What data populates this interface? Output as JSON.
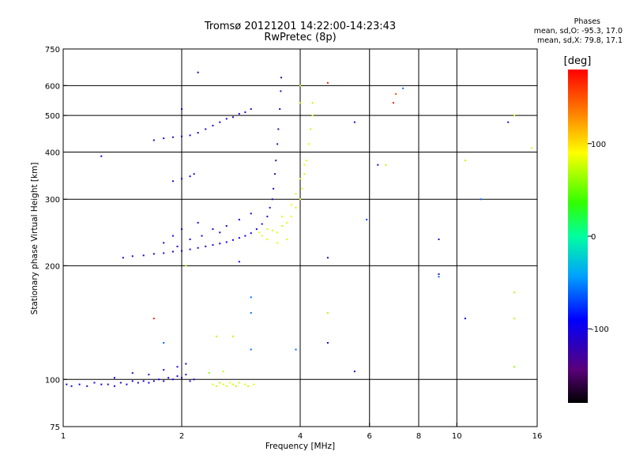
{
  "header": {
    "title_line1": "Tromsø 20121201 14:22:00-14:23:43",
    "title_line2": "RwPretec (8p)"
  },
  "phases": {
    "title": "Phases",
    "line_o": "mean, sd,O: -95.3, 17.0",
    "line_x": "mean, sd,X:  79.8, 17.1"
  },
  "colorbar": {
    "label": "[deg]",
    "ticks": [
      "100",
      "0",
      "-100"
    ],
    "tick_values": [
      100,
      0,
      -100
    ],
    "range": [
      -180,
      180
    ]
  },
  "chart_data": {
    "type": "scatter",
    "xlabel": "Frequency [MHz]",
    "ylabel": "Stationary phase Virtual Height [km]",
    "x_scale": "log",
    "y_scale": "log",
    "xlim": [
      1,
      16
    ],
    "ylim": [
      75,
      750
    ],
    "xticks": [
      1,
      2,
      4,
      6,
      8,
      10,
      16
    ],
    "xtick_labels": [
      "1",
      "2",
      "4",
      "6",
      "8",
      "10",
      "16"
    ],
    "yticks": [
      75,
      100,
      200,
      300,
      400,
      500,
      600,
      750
    ],
    "ytick_labels": [
      "75",
      "100",
      "200",
      "300",
      "400",
      "500",
      "600",
      "750"
    ],
    "grid_x": [
      2,
      4,
      6,
      8,
      10
    ],
    "grid_y": [
      100,
      200,
      300,
      400,
      500,
      600
    ],
    "color_meaning": "phase [deg]",
    "traces": [
      {
        "name_hint": "E layer O",
        "f_range": [
          1.0,
          2.2
        ],
        "h_base": 96,
        "phase": -105
      },
      {
        "name_hint": "E layer X",
        "f_range": [
          2.3,
          3.1
        ],
        "h_base": 97,
        "phase": 75
      },
      {
        "name_hint": "F layer O",
        "f_range": [
          1.4,
          3.55
        ],
        "h_base": 210,
        "phase": -100
      },
      {
        "name_hint": "F layer X",
        "f_range": [
          3.1,
          4.4
        ],
        "h_base": 240,
        "phase": 80
      },
      {
        "name_hint": "F layer O upper",
        "f_range": [
          1.7,
          3.0
        ],
        "h_base": 430,
        "phase": -110
      }
    ],
    "points": [
      [
        1.02,
        97,
        -100
      ],
      [
        1.05,
        96,
        -100
      ],
      [
        1.1,
        97,
        -95
      ],
      [
        1.15,
        96,
        -110
      ],
      [
        1.2,
        98,
        -100
      ],
      [
        1.25,
        97,
        -105
      ],
      [
        1.3,
        97,
        -100
      ],
      [
        1.35,
        96,
        -95
      ],
      [
        1.4,
        98,
        -110
      ],
      [
        1.45,
        97,
        -100
      ],
      [
        1.5,
        99,
        -100
      ],
      [
        1.55,
        98,
        -105
      ],
      [
        1.6,
        99,
        -100
      ],
      [
        1.65,
        98,
        -95
      ],
      [
        1.7,
        99,
        -110
      ],
      [
        1.75,
        100,
        -100
      ],
      [
        1.8,
        99,
        -100
      ],
      [
        1.85,
        101,
        -105
      ],
      [
        1.9,
        100,
        -100
      ],
      [
        1.95,
        102,
        -95
      ],
      [
        2.0,
        101,
        -110
      ],
      [
        2.05,
        103,
        -100
      ],
      [
        2.1,
        99,
        -100
      ],
      [
        2.15,
        100,
        -105
      ],
      [
        1.35,
        101,
        -100
      ],
      [
        1.5,
        104,
        -100
      ],
      [
        1.65,
        103,
        -105
      ],
      [
        1.8,
        106,
        -95
      ],
      [
        1.95,
        108,
        -100
      ],
      [
        2.05,
        110,
        -100
      ],
      [
        2.4,
        97,
        80
      ],
      [
        2.45,
        96,
        75
      ],
      [
        2.5,
        98,
        70
      ],
      [
        2.55,
        97,
        80
      ],
      [
        2.6,
        96,
        75
      ],
      [
        2.65,
        98,
        85
      ],
      [
        2.7,
        97,
        80
      ],
      [
        2.75,
        96,
        70
      ],
      [
        2.8,
        98,
        75
      ],
      [
        2.9,
        97,
        80
      ],
      [
        2.95,
        96,
        75
      ],
      [
        3.05,
        97,
        80
      ],
      [
        2.55,
        105,
        70
      ],
      [
        2.35,
        104,
        60
      ],
      [
        1.42,
        210,
        -100
      ],
      [
        1.5,
        212,
        -105
      ],
      [
        1.6,
        213,
        -100
      ],
      [
        1.7,
        215,
        -95
      ],
      [
        1.8,
        216,
        -100
      ],
      [
        1.9,
        218,
        -105
      ],
      [
        2.0,
        219,
        -100
      ],
      [
        2.1,
        221,
        -95
      ],
      [
        2.2,
        223,
        -100
      ],
      [
        2.3,
        225,
        -105
      ],
      [
        2.4,
        227,
        -100
      ],
      [
        2.5,
        229,
        -95
      ],
      [
        2.6,
        231,
        -100
      ],
      [
        2.7,
        234,
        -105
      ],
      [
        2.8,
        237,
        -100
      ],
      [
        2.9,
        240,
        -95
      ],
      [
        3.0,
        244,
        -100
      ],
      [
        3.1,
        250,
        -105
      ],
      [
        3.2,
        258,
        -110
      ],
      [
        3.3,
        270,
        -115
      ],
      [
        3.35,
        285,
        -115
      ],
      [
        3.4,
        300,
        -120
      ],
      [
        3.42,
        320,
        -120
      ],
      [
        3.45,
        350,
        -120
      ],
      [
        3.47,
        380,
        -125
      ],
      [
        3.5,
        420,
        -125
      ],
      [
        3.52,
        460,
        -125
      ],
      [
        3.55,
        520,
        -125
      ],
      [
        3.57,
        580,
        -125
      ],
      [
        3.58,
        630,
        -125
      ],
      [
        1.8,
        230,
        -100
      ],
      [
        1.9,
        240,
        -100
      ],
      [
        2.0,
        250,
        -95
      ],
      [
        2.1,
        235,
        -100
      ],
      [
        2.2,
        260,
        -105
      ],
      [
        2.4,
        250,
        -100
      ],
      [
        2.6,
        255,
        -105
      ],
      [
        2.8,
        265,
        -100
      ],
      [
        3.0,
        275,
        -110
      ],
      [
        2.25,
        240,
        -100
      ],
      [
        2.5,
        245,
        -100
      ],
      [
        1.95,
        225,
        -100
      ],
      [
        3.15,
        245,
        80
      ],
      [
        3.2,
        240,
        85
      ],
      [
        3.3,
        250,
        75
      ],
      [
        3.4,
        248,
        80
      ],
      [
        3.5,
        245,
        85
      ],
      [
        3.6,
        255,
        75
      ],
      [
        3.7,
        260,
        80
      ],
      [
        3.8,
        270,
        85
      ],
      [
        3.9,
        285,
        75
      ],
      [
        4.0,
        300,
        80
      ],
      [
        4.05,
        320,
        85
      ],
      [
        4.1,
        350,
        75
      ],
      [
        4.15,
        380,
        80
      ],
      [
        4.2,
        420,
        80
      ],
      [
        4.25,
        460,
        75
      ],
      [
        4.3,
        500,
        80
      ],
      [
        4.3,
        540,
        70
      ],
      [
        3.6,
        270,
        80
      ],
      [
        3.8,
        290,
        85
      ],
      [
        3.9,
        310,
        75
      ],
      [
        3.7,
        235,
        80
      ],
      [
        3.5,
        230,
        85
      ],
      [
        3.3,
        235,
        80
      ],
      [
        4.0,
        340,
        80
      ],
      [
        4.1,
        370,
        85
      ],
      [
        1.7,
        430,
        -110
      ],
      [
        1.8,
        435,
        -105
      ],
      [
        1.9,
        438,
        -110
      ],
      [
        2.0,
        440,
        -105
      ],
      [
        2.1,
        443,
        -110
      ],
      [
        2.2,
        450,
        -105
      ],
      [
        2.3,
        460,
        -110
      ],
      [
        2.4,
        470,
        -105
      ],
      [
        2.5,
        480,
        -110
      ],
      [
        2.6,
        490,
        -105
      ],
      [
        2.7,
        495,
        -110
      ],
      [
        2.8,
        505,
        -105
      ],
      [
        2.9,
        510,
        -110
      ],
      [
        3.0,
        520,
        -115
      ],
      [
        1.9,
        335,
        -105
      ],
      [
        2.0,
        340,
        -110
      ],
      [
        2.1,
        345,
        -105
      ],
      [
        2.15,
        350,
        -110
      ],
      [
        1.25,
        390,
        -100
      ],
      [
        2.2,
        650,
        -100
      ],
      [
        4.7,
        610,
        170
      ],
      [
        5.5,
        480,
        -110
      ],
      [
        6.3,
        370,
        -110
      ],
      [
        6.6,
        370,
        70
      ],
      [
        7.0,
        570,
        150
      ],
      [
        7.3,
        590,
        -60
      ],
      [
        5.9,
        265,
        -70
      ],
      [
        4.7,
        210,
        -110
      ],
      [
        9.0,
        235,
        -110
      ],
      [
        9.0,
        190,
        -110
      ],
      [
        9.0,
        187,
        -60
      ],
      [
        10.5,
        380,
        70
      ],
      [
        11.5,
        300,
        -60
      ],
      [
        13.5,
        480,
        -110
      ],
      [
        14.0,
        500,
        80
      ],
      [
        14.0,
        170,
        70
      ],
      [
        14.0,
        145,
        70
      ],
      [
        14.0,
        108,
        60
      ],
      [
        10.5,
        145,
        -90
      ],
      [
        5.5,
        105,
        -110
      ],
      [
        4.7,
        125,
        -110
      ],
      [
        4.7,
        150,
        70
      ],
      [
        3.9,
        120,
        -60
      ],
      [
        3.0,
        165,
        -60
      ],
      [
        3.0,
        150,
        -60
      ],
      [
        2.7,
        130,
        70
      ],
      [
        3.0,
        120,
        -60
      ],
      [
        1.8,
        125,
        -60
      ],
      [
        1.7,
        145,
        170
      ],
      [
        2.0,
        520,
        -100
      ],
      [
        4.0,
        540,
        70
      ],
      [
        4.0,
        600,
        70
      ],
      [
        15.5,
        410,
        80
      ],
      [
        6.9,
        540,
        170
      ],
      [
        2.05,
        200,
        70
      ],
      [
        2.8,
        205,
        -100
      ],
      [
        2.45,
        130,
        70
      ]
    ]
  }
}
